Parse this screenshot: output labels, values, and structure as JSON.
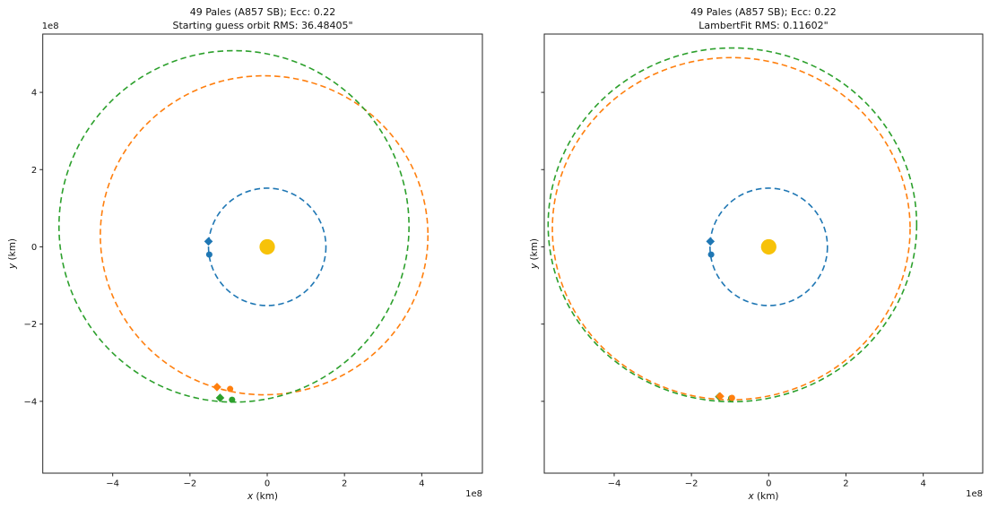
{
  "figure": {
    "background": "#ffffff",
    "axis_color": "#262626",
    "text_color": "#111111"
  },
  "colors": {
    "earth_orbit_blue": "#1f77b4",
    "fit_orbit_orange": "#ff7f0e",
    "reference_orbit_green": "#2ca02c",
    "sun_gold": "#f7c209"
  },
  "chart_data": [
    {
      "type": "line",
      "id": "starting-guess-plot",
      "title": {
        "line1": "49 Pales (A857 SB); Ecc: 0.22",
        "line2": "Starting guess orbit RMS: 36.48405\""
      },
      "xlabel": {
        "var": "x",
        "unit": " (km)"
      },
      "ylabel": {
        "var": "y",
        "unit": " (km)"
      },
      "offset_text_y": "1e8",
      "offset_text_x": "1e8",
      "units_note": "axis values in 1e8 km",
      "xlim": [
        -5.81,
        5.57
      ],
      "ylim": [
        -5.86,
        5.51
      ],
      "xticks": {
        "values": [
          -4,
          -2,
          0,
          2,
          4
        ],
        "labels": [
          "−4",
          "−2",
          "0",
          "2",
          "4"
        ]
      },
      "yticks": {
        "values": [
          -4,
          -2,
          0,
          2,
          4
        ],
        "labels": [
          "−4",
          "−2",
          "0",
          "2",
          "4"
        ],
        "show_labels": true
      },
      "grid": false,
      "legend": "none",
      "sun": {
        "x": 0,
        "y": 0,
        "r": 0.2,
        "color": "#f7c209"
      },
      "orbits": [
        {
          "name": "earth-orbit",
          "color": "#1f77b4",
          "cx": 0,
          "cy": 0,
          "rx": 1.52,
          "ry": 1.52,
          "linestyle": "dashed"
        },
        {
          "name": "guess-orbit",
          "color": "#ff7f0e",
          "cx": -0.08,
          "cy": 0.3,
          "rx": 4.24,
          "ry": 4.13,
          "linestyle": "dashed"
        },
        {
          "name": "reference-orbit",
          "color": "#2ca02c",
          "cx": -0.86,
          "cy": 0.53,
          "rx": 4.53,
          "ry": 4.55,
          "linestyle": "dashed"
        }
      ],
      "markers": [
        {
          "name": "reference-obs-start",
          "shape": "diamond",
          "color": "#2ca02c",
          "x": -1.22,
          "y": -3.91
        },
        {
          "name": "reference-obs-end",
          "shape": "dot",
          "color": "#2ca02c",
          "x": -0.91,
          "y": -3.96
        },
        {
          "name": "guess-obs-start",
          "shape": "diamond",
          "color": "#ff7f0e",
          "x": -1.3,
          "y": -3.63
        },
        {
          "name": "guess-obs-end",
          "shape": "dot",
          "color": "#ff7f0e",
          "x": -0.96,
          "y": -3.68
        },
        {
          "name": "earth-obs-start",
          "shape": "diamond",
          "color": "#1f77b4",
          "x": -1.52,
          "y": 0.14
        },
        {
          "name": "earth-obs-end",
          "shape": "dot",
          "color": "#1f77b4",
          "x": -1.5,
          "y": -0.2
        }
      ]
    },
    {
      "type": "line",
      "id": "lambertfit-plot",
      "title": {
        "line1": "49 Pales (A857 SB); Ecc: 0.22",
        "line2": "LambertFit RMS: 0.11602\""
      },
      "xlabel": {
        "var": "x",
        "unit": " (km)"
      },
      "ylabel": {
        "var": "y",
        "unit": " (km)"
      },
      "offset_text_y": "",
      "offset_text_x": "1e8",
      "units_note": "axis values in 1e8 km",
      "xlim": [
        -5.81,
        5.54
      ],
      "ylim": [
        -5.86,
        5.51
      ],
      "xticks": {
        "values": [
          -4,
          -2,
          0,
          2,
          4
        ],
        "labels": [
          "−4",
          "−2",
          "0",
          "2",
          "4"
        ]
      },
      "yticks": {
        "values": [
          -4,
          -2,
          0,
          2,
          4
        ],
        "labels": [
          "−4",
          "−2",
          "0",
          "2",
          "4"
        ],
        "show_labels": false
      },
      "grid": false,
      "legend": "none",
      "sun": {
        "x": 0,
        "y": 0,
        "r": 0.2,
        "color": "#f7c209"
      },
      "orbits": [
        {
          "name": "earth-orbit",
          "color": "#1f77b4",
          "cx": 0,
          "cy": 0,
          "rx": 1.52,
          "ry": 1.52,
          "linestyle": "dashed"
        },
        {
          "name": "reference-orbit",
          "color": "#2ca02c",
          "cx": -0.94,
          "cy": 0.57,
          "rx": 4.77,
          "ry": 4.58,
          "linestyle": "dashed"
        },
        {
          "name": "lambertfit-orbit",
          "color": "#ff7f0e",
          "cx": -0.97,
          "cy": 0.47,
          "rx": 4.63,
          "ry": 4.43,
          "linestyle": "dashed"
        }
      ],
      "markers": [
        {
          "name": "reference-obs-start",
          "shape": "diamond",
          "color": "#2ca02c",
          "x": -1.28,
          "y": -3.88
        },
        {
          "name": "reference-obs-end",
          "shape": "dot",
          "color": "#2ca02c",
          "x": -0.97,
          "y": -3.92
        },
        {
          "name": "fit-obs-start",
          "shape": "diamond",
          "color": "#ff7f0e",
          "x": -1.26,
          "y": -3.87
        },
        {
          "name": "fit-obs-end",
          "shape": "dot",
          "color": "#ff7f0e",
          "x": -0.95,
          "y": -3.91
        },
        {
          "name": "earth-obs-start",
          "shape": "diamond",
          "color": "#1f77b4",
          "x": -1.51,
          "y": 0.14
        },
        {
          "name": "earth-obs-end",
          "shape": "dot",
          "color": "#1f77b4",
          "x": -1.49,
          "y": -0.2
        }
      ]
    }
  ]
}
